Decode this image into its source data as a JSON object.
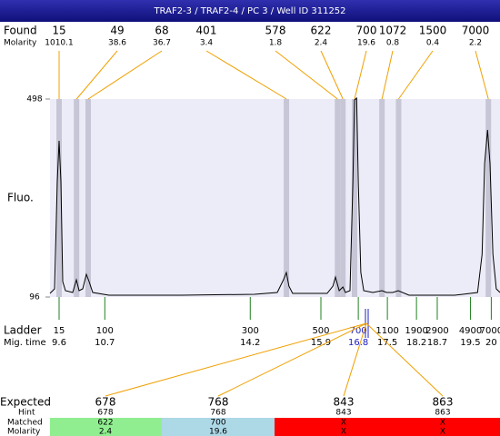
{
  "title": "TRAF2-3 / TRAF2-4 / PC 3 / Well ID 311252",
  "found": {
    "label": "Found",
    "molarity_label": "Molarity",
    "sizes": [
      15,
      49,
      68,
      401,
      578,
      622,
      700,
      1072,
      1500,
      7000
    ],
    "molarity": [
      "1010.1",
      38.6,
      36.7,
      3.4,
      1.8,
      2.4,
      19.6,
      0.8,
      0.4,
      2.2
    ],
    "times": [
      9.6,
      10.02,
      10.3,
      15.07,
      16.3,
      16.43,
      16.71,
      17.37,
      17.77,
      19.93
    ]
  },
  "chart_data": {
    "type": "line",
    "y_label": "Fluo.",
    "color": "#000000",
    "x": [
      9.381,
      9.491,
      9.556,
      9.6,
      9.644,
      9.688,
      9.753,
      9.928,
      10.016,
      10.081,
      10.169,
      10.256,
      10.322,
      10.41,
      10.8,
      12.55,
      14.3,
      14.85,
      15.0,
      15.07,
      15.13,
      15.22,
      16.05,
      16.19,
      16.25,
      16.34,
      16.43,
      16.49,
      16.6,
      16.67,
      16.71,
      16.76,
      16.8,
      16.86,
      16.93,
      17.15,
      17.37,
      17.48,
      17.63,
      17.76,
      18.02,
      19.12,
      19.67,
      19.78,
      19.84,
      19.91,
      19.97,
      20.04,
      20.12,
      20.21
    ],
    "values": [
      103.4,
      112.6,
      330.2,
      413.2,
      330.2,
      127.3,
      108.9,
      105.2,
      131.0,
      108.9,
      112.6,
      142.1,
      127.3,
      105.2,
      99.7,
      99.7,
      101.5,
      105.2,
      131.0,
      145.8,
      118.1,
      103.4,
      103.4,
      118.1,
      136.6,
      108.9,
      116.3,
      105.2,
      108.9,
      330.2,
      496.1,
      499.8,
      330.2,
      145.8,
      108.9,
      105.2,
      108.9,
      105.2,
      105.2,
      108.9,
      99.7,
      99.7,
      105.2,
      182.7,
      367.1,
      435.3,
      367.1,
      182.7,
      112.6,
      105.2
    ],
    "xlim": [
      9.381,
      20.21
    ],
    "ylim": [
      96,
      498
    ],
    "yticks": [
      96,
      498
    ]
  },
  "ladder": {
    "label": "Ladder",
    "time_label": "Mig. time",
    "sizes": [
      15,
      100,
      300,
      500,
      700,
      1100,
      1900,
      2900,
      4900,
      7000
    ],
    "times": [
      9.6,
      10.7,
      14.2,
      15.9,
      16.8,
      17.5,
      18.2,
      18.7,
      19.5,
      20
    ]
  },
  "expected": {
    "label": "Expected",
    "hint_label": "Hint",
    "matched_label": "Matched",
    "molarity_label": "Molarity",
    "sizes": [
      678,
      768,
      843,
      863
    ],
    "hints": [
      678,
      768,
      843,
      863
    ],
    "matched": [
      622,
      700,
      "X",
      "X"
    ],
    "molarity": [
      2.4,
      19.6,
      "X",
      "X"
    ]
  }
}
